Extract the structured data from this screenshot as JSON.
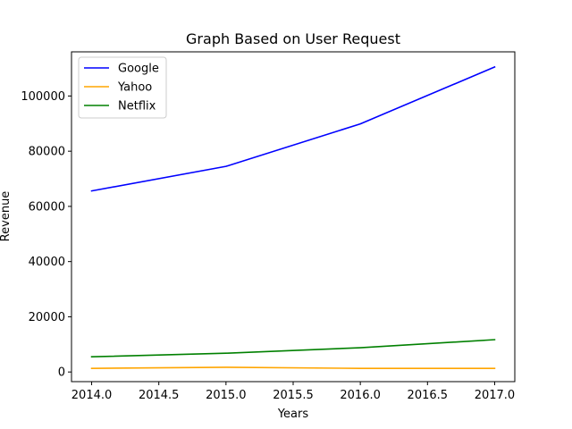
{
  "chart_data": {
    "type": "line",
    "title": "Graph Based on User Request",
    "xlabel": "Years",
    "ylabel": "Revenue",
    "x": [
      2014,
      2015,
      2016,
      2017
    ],
    "series": [
      {
        "name": "Google",
        "color": "#0000ff",
        "values": [
          65600,
          74500,
          89900,
          110500
        ]
      },
      {
        "name": "Yahoo",
        "color": "#ffa500",
        "values": [
          1300,
          1700,
          1300,
          1300
        ]
      },
      {
        "name": "Netflix",
        "color": "#008000",
        "values": [
          5500,
          6800,
          8800,
          11700
        ]
      }
    ],
    "xlim": [
      2013.85,
      2017.15
    ],
    "ylim": [
      -3500,
      116000
    ],
    "xticks": [
      2014.0,
      2014.5,
      2015.0,
      2015.5,
      2016.0,
      2016.5,
      2017.0
    ],
    "xtick_labels": [
      "2014.0",
      "2014.5",
      "2015.0",
      "2015.5",
      "2016.0",
      "2016.5",
      "2017.0"
    ],
    "yticks": [
      0,
      20000,
      40000,
      60000,
      80000,
      100000
    ],
    "ytick_labels": [
      "0",
      "20000",
      "40000",
      "60000",
      "80000",
      "100000"
    ],
    "grid": false,
    "legend_position": "upper-left"
  }
}
